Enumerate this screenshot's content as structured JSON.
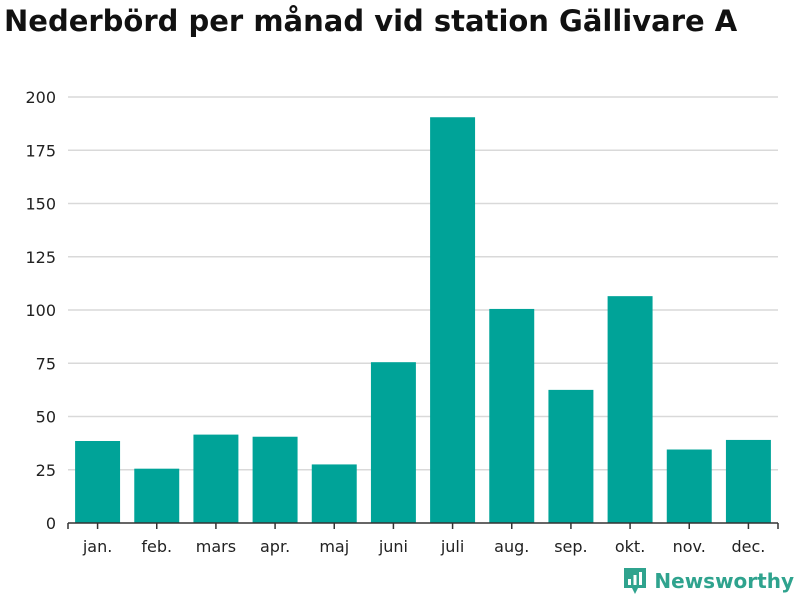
{
  "chart_data": {
    "type": "bar",
    "title": "Nederbörd per månad vid station Gällivare A",
    "categories": [
      "jan.",
      "feb.",
      "mars",
      "apr.",
      "maj",
      "juni",
      "juli",
      "aug.",
      "sep.",
      "okt.",
      "nov.",
      "dec."
    ],
    "values": [
      38.5,
      25.5,
      41.5,
      40.5,
      27.5,
      75.5,
      190.5,
      100.5,
      62.5,
      106.5,
      34.5,
      39
    ],
    "xlabel": "",
    "ylabel": "",
    "ylim": [
      0,
      200
    ],
    "yticks": [
      "0",
      "25",
      "50",
      "75",
      "100",
      "125",
      "150",
      "175",
      "200"
    ],
    "grid": true,
    "bar_color": "#00a398"
  },
  "brand": {
    "name": "Newsworthy",
    "icon": "bar-chart-badge-icon",
    "color": "#2fa38e"
  }
}
